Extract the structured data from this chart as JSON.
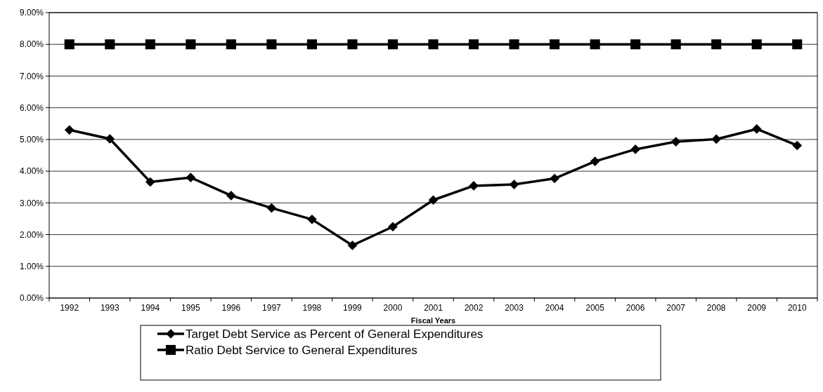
{
  "chart_data": {
    "type": "line",
    "xlabel": "Fiscal Years",
    "categories": [
      "1992",
      "1993",
      "1994",
      "1995",
      "1996",
      "1997",
      "1998",
      "1999",
      "2000",
      "2001",
      "2002",
      "2003",
      "2004",
      "2005",
      "2006",
      "2007",
      "2008",
      "2009",
      "2010"
    ],
    "series": [
      {
        "name": "Target Debt Service as Percent of General Expenditures",
        "color": "#000000",
        "marker": "diamond",
        "values": [
          5.3,
          5.02,
          3.66,
          3.8,
          3.23,
          2.84,
          2.48,
          1.66,
          2.25,
          3.09,
          3.54,
          3.58,
          3.77,
          4.31,
          4.69,
          4.93,
          5.01,
          5.33,
          4.81
        ]
      },
      {
        "name": "Ratio Debt Service to General Expenditures",
        "color": "#000000",
        "marker": "square",
        "values": [
          8,
          8,
          8,
          8,
          8,
          8,
          8,
          8,
          8,
          8,
          8,
          8,
          8,
          8,
          8,
          8,
          8,
          8,
          8
        ]
      }
    ],
    "ylim": [
      0,
      9
    ],
    "yticks": [
      {
        "value": 0,
        "label": "0.00%"
      },
      {
        "value": 1,
        "label": "1.00%"
      },
      {
        "value": 2,
        "label": "2.00%"
      },
      {
        "value": 3,
        "label": "3.00%"
      },
      {
        "value": 4,
        "label": "4.00%"
      },
      {
        "value": 5,
        "label": "5.00%"
      },
      {
        "value": 6,
        "label": "6.00%"
      },
      {
        "value": 7,
        "label": "7.00%"
      },
      {
        "value": 8,
        "label": "8.00%"
      },
      {
        "value": 9,
        "label": "9.00%"
      }
    ],
    "grid": "y",
    "legend": "bottom",
    "line_style": "solid"
  }
}
